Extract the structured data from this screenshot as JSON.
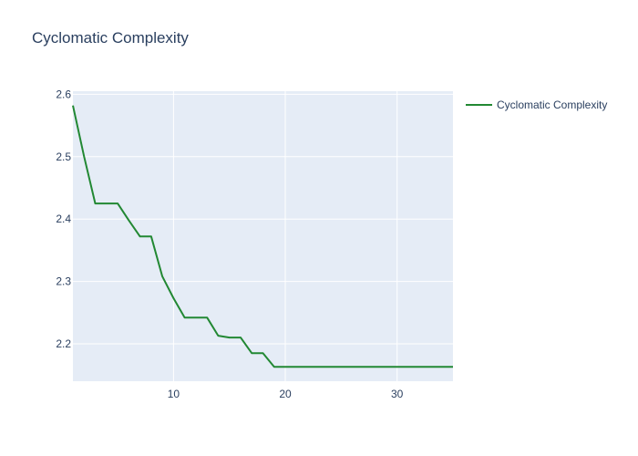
{
  "chart_data": {
    "type": "line",
    "title": "Cyclomatic Complexity",
    "xlabel": "",
    "ylabel": "",
    "xlim": [
      1,
      35
    ],
    "ylim": [
      2.14,
      2.605
    ],
    "xticks": [
      10,
      20,
      30
    ],
    "yticks": [
      2.2,
      2.3,
      2.4,
      2.5,
      2.6
    ],
    "grid": true,
    "legend_position": "top-right",
    "colors": {
      "plot_bg": "#e5ecf6",
      "line": "#228833",
      "grid": "#ffffff",
      "text": "#2a3f5f"
    },
    "series": [
      {
        "name": "Cyclomatic Complexity",
        "x": [
          1,
          2,
          3,
          4,
          5,
          6,
          7,
          8,
          9,
          10,
          11,
          12,
          13,
          14,
          15,
          16,
          17,
          18,
          19,
          20,
          21,
          22,
          23,
          24,
          25,
          26,
          27,
          28,
          29,
          30,
          31,
          32,
          33,
          34,
          35
        ],
        "y": [
          2.582,
          2.5,
          2.425,
          2.425,
          2.425,
          2.398,
          2.372,
          2.372,
          2.308,
          2.273,
          2.242,
          2.242,
          2.242,
          2.213,
          2.21,
          2.21,
          2.185,
          2.185,
          2.163,
          2.163,
          2.163,
          2.163,
          2.163,
          2.163,
          2.163,
          2.163,
          2.163,
          2.163,
          2.163,
          2.163,
          2.163,
          2.163,
          2.163,
          2.163,
          2.163
        ]
      }
    ]
  }
}
